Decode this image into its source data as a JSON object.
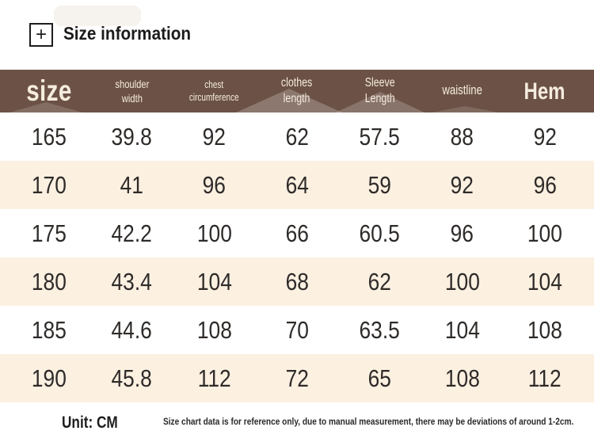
{
  "page": {
    "title": "Size information",
    "plus_icon": "+"
  },
  "table": {
    "columns": [
      {
        "label": "size"
      },
      {
        "label": "shoulder\nwidth"
      },
      {
        "label": "chest\ncircumference"
      },
      {
        "label": "clothes\nlength"
      },
      {
        "label": "Sleeve\nLength"
      },
      {
        "label": "waistline"
      },
      {
        "label": "Hem"
      }
    ],
    "rows": [
      [
        "165",
        "39.8",
        "92",
        "62",
        "57.5",
        "88",
        "92"
      ],
      [
        "170",
        "41",
        "96",
        "64",
        "59",
        "92",
        "96"
      ],
      [
        "175",
        "42.2",
        "100",
        "66",
        "60.5",
        "96",
        "100"
      ],
      [
        "180",
        "43.4",
        "104",
        "68",
        "62",
        "100",
        "104"
      ],
      [
        "185",
        "44.6",
        "108",
        "70",
        "63.5",
        "104",
        "108"
      ],
      [
        "190",
        "45.8",
        "112",
        "72",
        "65",
        "108",
        "112"
      ]
    ]
  },
  "footer": {
    "unit_label": "Unit: CM",
    "note": "Size chart data is for reference only, due to manual measurement, there may be deviations of around 1-2cm."
  },
  "colors": {
    "header_bg": "#6c5246",
    "header_text": "#f5ecdf",
    "row_alt_bg": "#fcf0e1",
    "row_bg": "#ffffff",
    "body_text": "#2e2b29"
  },
  "chart_data": {
    "type": "table",
    "title": "Size information",
    "columns": [
      "size",
      "shoulder width",
      "chest circumference",
      "clothes length",
      "Sleeve Length",
      "waistline",
      "Hem"
    ],
    "rows": [
      [
        165,
        39.8,
        92,
        62,
        57.5,
        88,
        92
      ],
      [
        170,
        41,
        96,
        64,
        59,
        92,
        96
      ],
      [
        175,
        42.2,
        100,
        66,
        60.5,
        96,
        100
      ],
      [
        180,
        43.4,
        104,
        68,
        62,
        100,
        104
      ],
      [
        185,
        44.6,
        108,
        70,
        63.5,
        104,
        108
      ],
      [
        190,
        45.8,
        112,
        72,
        65,
        108,
        112
      ]
    ],
    "unit": "CM",
    "note": "Size chart data is for reference only, due to manual measurement, there may be deviations of around 1-2cm."
  }
}
